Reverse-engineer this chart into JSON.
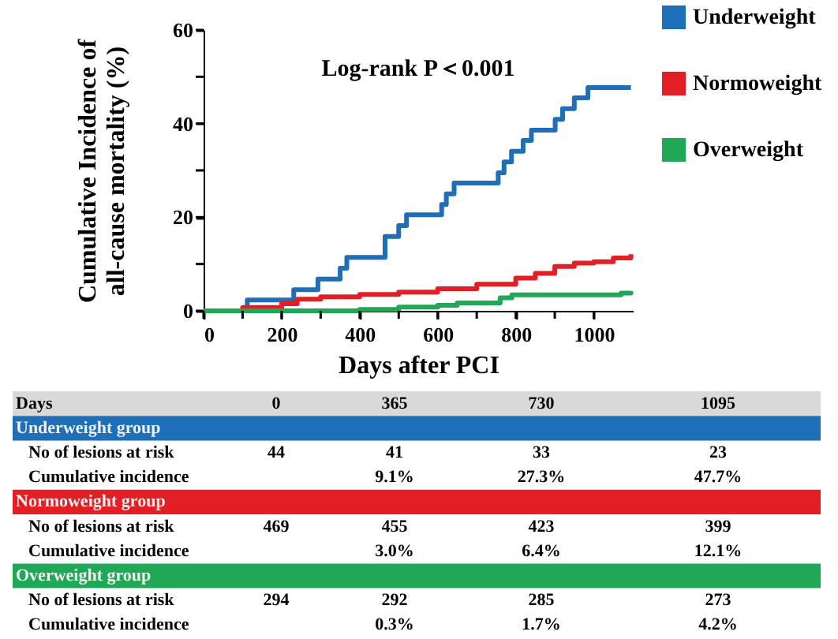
{
  "chart_data": {
    "type": "step",
    "xlabel": "Days after PCI",
    "ylabel": "Cumulative Incidence of all-cause mortality (%)",
    "xlim": [
      0,
      1100
    ],
    "xticks": [
      0,
      {
        "value": 100,
        "label": null
      },
      200,
      {
        "value": 300,
        "label": null
      },
      400,
      {
        "value": 500,
        "label": null
      },
      600,
      {
        "value": 700,
        "label": null
      },
      800,
      {
        "value": 900,
        "label": null
      },
      1000
    ],
    "ylim": [
      0,
      60
    ],
    "yticks": [
      0,
      {
        "value": 10,
        "label": null
      },
      20,
      {
        "value": 30,
        "label": null
      },
      40,
      {
        "value": 50,
        "label": null
      },
      60
    ],
    "grid": false,
    "legend": "top right",
    "line_style": "solid",
    "marker": "none",
    "series": [
      {
        "name": "Underweight",
        "color": "#1f6fb8",
        "x": [
          0,
          112,
          231,
          293,
          350,
          367,
          465,
          500,
          520,
          610,
          622,
          642,
          755,
          770,
          789,
          819,
          840,
          901,
          920,
          950,
          985,
          1095
        ],
        "values": [
          0,
          2.3,
          4.5,
          6.8,
          9.1,
          11.4,
          15.9,
          18.2,
          20.5,
          22.7,
          25.0,
          27.3,
          29.5,
          31.8,
          34.1,
          36.4,
          38.6,
          40.9,
          43.2,
          45.5,
          47.7,
          47.7
        ]
      },
      {
        "name": "Normoweight",
        "color": "#e31e24",
        "x": [
          0,
          100,
          200,
          240,
          300,
          400,
          500,
          600,
          700,
          800,
          850,
          900,
          950,
          1000,
          1050,
          1095
        ],
        "values": [
          0,
          0.7,
          1.5,
          2.5,
          3.0,
          3.5,
          4.0,
          4.7,
          5.7,
          7.0,
          8.0,
          9.5,
          10.2,
          10.5,
          11.3,
          12.1
        ]
      },
      {
        "name": "Overweight",
        "color": "#1fa855",
        "x": [
          0,
          300,
          400,
          500,
          600,
          650,
          740,
          760,
          790,
          1060,
          1070,
          1095
        ],
        "values": [
          0,
          0,
          0.3,
          0.8,
          1.2,
          1.7,
          1.7,
          2.8,
          3.4,
          3.4,
          3.8,
          4.2
        ]
      }
    ],
    "annotations": [
      "Log-rank P＜0.001",
      "Days\t0\t365\t730\t1095",
      "Underweight  group",
      "No of lesions at risk\t44\t41\t33\t23",
      "Cumulative  incidence\t\t9.1%\t27.3%\t47.7%",
      "Normoweight  group",
      "No of lesions at risk\t469\t455\t423\t399",
      "Cumulative  incidence\t\t3.0%\t6.4%\t12.1%",
      "Overweight  group",
      "No of lesions at risk\t294\t292\t285\t273",
      "Cumulative  incidence\t\t0.3%\t1.7%\t4.2%"
    ]
  }
}
